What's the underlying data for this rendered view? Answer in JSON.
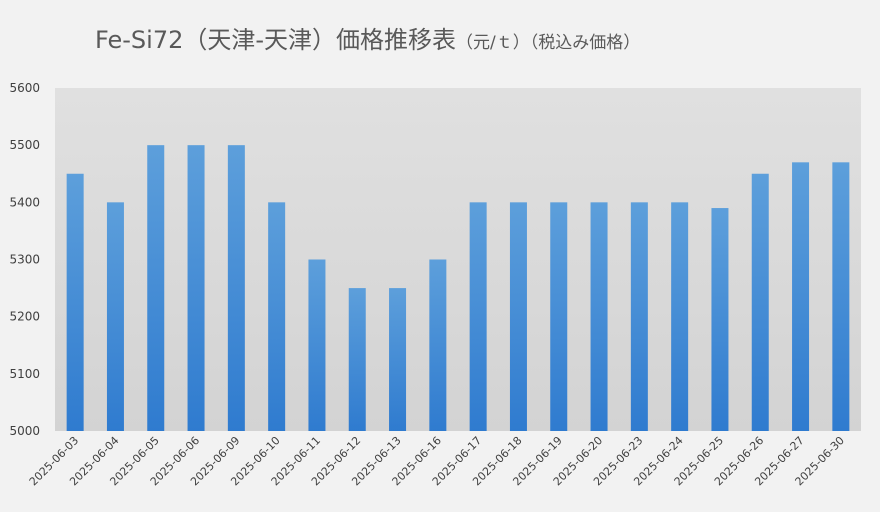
{
  "chart_data": {
    "type": "bar",
    "title": "Fe-Si72（天津-天津）価格推移表",
    "unit_label": "（元/ｔ）",
    "note_label": "（税込み価格）",
    "categories": [
      "2025-06-03",
      "2025-06-04",
      "2025-06-05",
      "2025-06-06",
      "2025-06-09",
      "2025-06-10",
      "2025-06-11",
      "2025-06-12",
      "2025-06-13",
      "2025-06-16",
      "2025-06-17",
      "2025-06-18",
      "2025-06-19",
      "2025-06-20",
      "2025-06-23",
      "2025-06-24",
      "2025-06-25",
      "2025-06-26",
      "2025-06-27",
      "2025-06-30"
    ],
    "values": [
      5450,
      5400,
      5500,
      5500,
      5500,
      5400,
      5300,
      5250,
      5250,
      5300,
      5400,
      5400,
      5400,
      5400,
      5400,
      5400,
      5390,
      5450,
      5470,
      5470
    ],
    "ylim": [
      5000,
      5600
    ],
    "yticks": [
      5000,
      5100,
      5200,
      5300,
      5400,
      5500,
      5600
    ],
    "grid": false,
    "legend": "none",
    "colors": {
      "bar_top": "#5d9fdb",
      "bar_bottom": "#2f7bcf",
      "plot_bg": "#d9d9d9",
      "page_bg": "#f2f2f2"
    }
  }
}
